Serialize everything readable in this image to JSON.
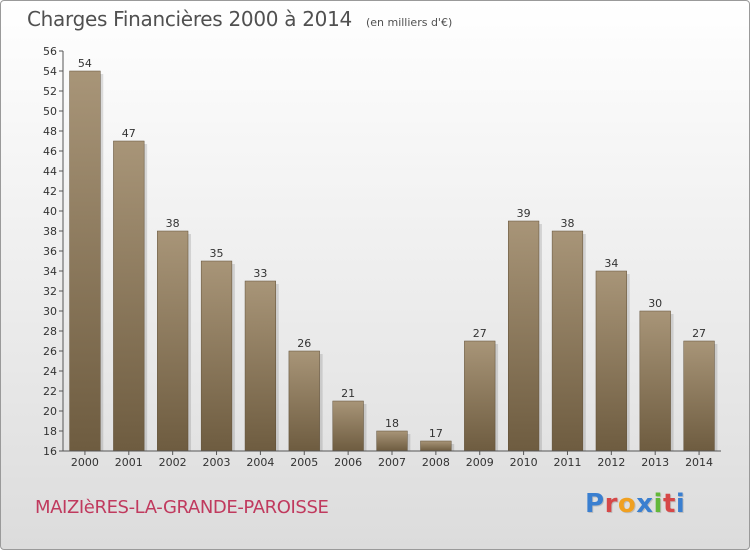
{
  "header": {
    "title": "Charges Financières 2000 à 2014",
    "unit_note": "(en milliers d'€)"
  },
  "footer": {
    "commune": "MAIZIèRES-LA-GRANDE-PAROISSE",
    "brand": "Proxiti"
  },
  "colors": {
    "bar_light": "#a89578",
    "bar_dark": "#6e5c40",
    "commune_text": "#c03a5e",
    "brand_letters": [
      "#3a7fd0",
      "#d64848",
      "#f0a020",
      "#3a7fd0",
      "#63b83a",
      "#d64848",
      "#3a7fd0"
    ]
  },
  "chart_data": {
    "type": "bar",
    "title": "Charges Financières 2000 à 2014",
    "subtitle": "(en milliers d'€)",
    "categories": [
      "2000",
      "2001",
      "2002",
      "2003",
      "2004",
      "2005",
      "2006",
      "2007",
      "2008",
      "2009",
      "2010",
      "2011",
      "2012",
      "2013",
      "2014"
    ],
    "values": [
      54,
      47,
      38,
      35,
      33,
      26,
      21,
      18,
      17,
      27,
      39,
      38,
      34,
      30,
      27
    ],
    "ylim": [
      16,
      56
    ],
    "yticks": [
      16,
      18,
      20,
      22,
      24,
      26,
      28,
      30,
      32,
      34,
      36,
      38,
      40,
      42,
      44,
      46,
      48,
      50,
      52,
      54,
      56
    ],
    "grid": false,
    "data_labels": true
  }
}
